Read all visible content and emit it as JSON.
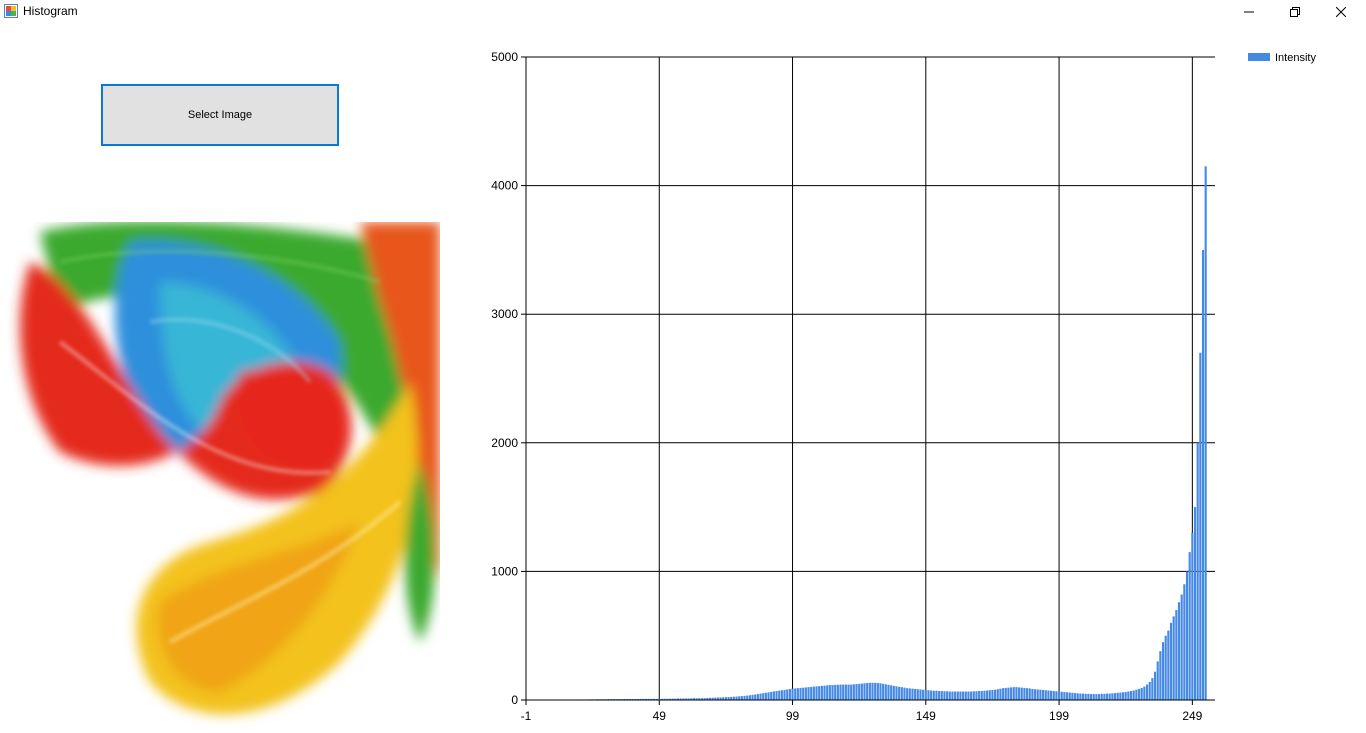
{
  "window": {
    "title": "Histogram",
    "icons": {
      "app": "app-window-icon",
      "minimize": "minimize-icon",
      "restore": "restore-icon",
      "close": "close-icon"
    }
  },
  "controls": {
    "select_image_label": "Select Image"
  },
  "image": {
    "description": "paint-swirl-thumbnail",
    "icon": "image-icon"
  },
  "colors": {
    "bar": "#4589e6",
    "button_border": "#0a79d3",
    "button_bg": "#e1e1e1"
  },
  "chart_data": {
    "type": "bar",
    "title": "",
    "xlabel": "",
    "ylabel": "",
    "xlim": [
      -1,
      256
    ],
    "ylim": [
      0,
      5000
    ],
    "x_ticks": [
      "-1",
      "49",
      "99",
      "149",
      "199",
      "249"
    ],
    "y_ticks": [
      "0",
      "1000",
      "2000",
      "3000",
      "4000",
      "5000"
    ],
    "grid": true,
    "legend": "top-right",
    "series": [
      {
        "name": "Intensity",
        "x_start": 0,
        "values": [
          0,
          0,
          0,
          0,
          0,
          0,
          0,
          0,
          0,
          0,
          0,
          0,
          0,
          2,
          2,
          3,
          3,
          3,
          3,
          4,
          4,
          4,
          4,
          5,
          5,
          5,
          6,
          6,
          6,
          6,
          7,
          7,
          7,
          7,
          7,
          7,
          8,
          8,
          8,
          8,
          8,
          8,
          9,
          9,
          9,
          9,
          9,
          9,
          9,
          9,
          9,
          10,
          10,
          10,
          11,
          11,
          12,
          12,
          12,
          12,
          12,
          13,
          14,
          14,
          14,
          14,
          15,
          16,
          17,
          18,
          19,
          20,
          20,
          21,
          22,
          23,
          24,
          26,
          27,
          29,
          30,
          32,
          34,
          37,
          40,
          43,
          46,
          50,
          53,
          56,
          60,
          63,
          67,
          70,
          73,
          76,
          79,
          82,
          85,
          88,
          90,
          92,
          94,
          96,
          98,
          100,
          102,
          104,
          106,
          108,
          110,
          112,
          114,
          116,
          116,
          118,
          118,
          120,
          120,
          120,
          120,
          120,
          122,
          124,
          126,
          128,
          130,
          132,
          134,
          134,
          134,
          132,
          130,
          126,
          122,
          118,
          114,
          110,
          106,
          102,
          100,
          96,
          92,
          90,
          88,
          86,
          84,
          82,
          80,
          78,
          76,
          74,
          72,
          72,
          70,
          70,
          68,
          68,
          66,
          66,
          66,
          66,
          66,
          66,
          66,
          66,
          66,
          68,
          68,
          70,
          70,
          72,
          74,
          76,
          78,
          80,
          84,
          88,
          92,
          94,
          96,
          98,
          100,
          100,
          98,
          96,
          94,
          92,
          90,
          86,
          84,
          82,
          80,
          78,
          76,
          74,
          72,
          70,
          68,
          66,
          64,
          62,
          60,
          58,
          56,
          54,
          52,
          50,
          50,
          48,
          48,
          46,
          46,
          46,
          46,
          48,
          48,
          50,
          50,
          52,
          54,
          56,
          58,
          60,
          62,
          66,
          70,
          74,
          80,
          86,
          94,
          104,
          120,
          140,
          170,
          220,
          300,
          380,
          450,
          500,
          540,
          600,
          650,
          700,
          760,
          820,
          900,
          1000,
          1150,
          1300,
          1500,
          2000,
          2700,
          3500,
          4150,
          0
        ]
      }
    ]
  }
}
